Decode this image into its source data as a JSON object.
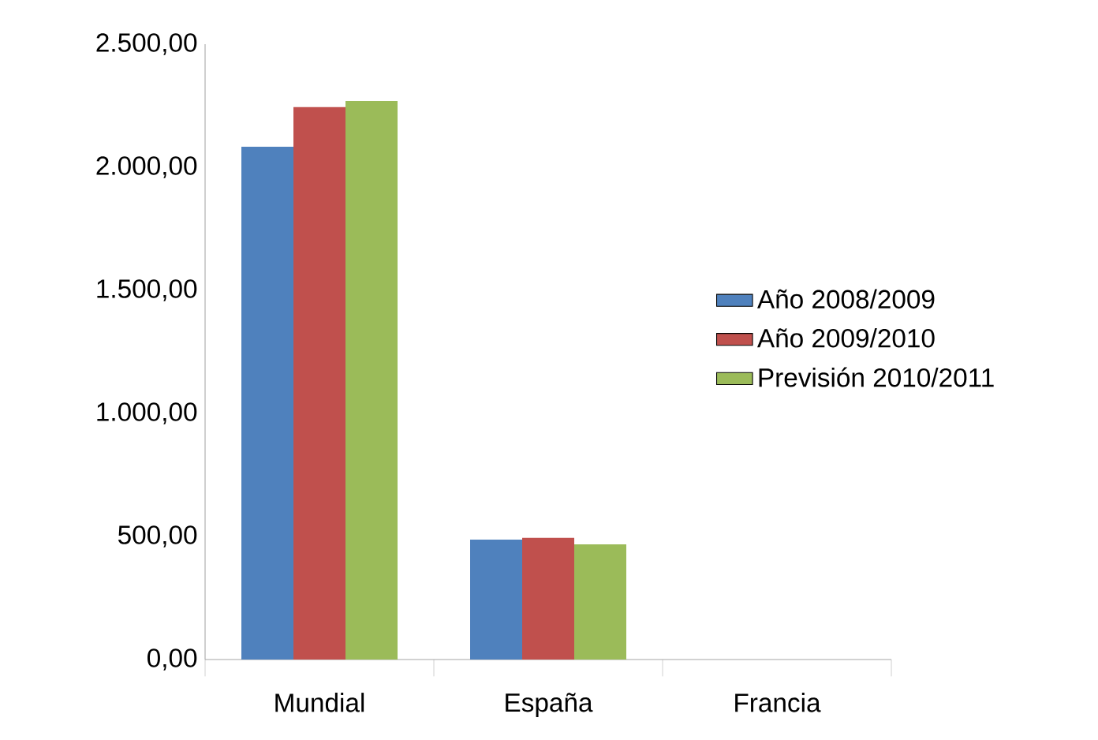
{
  "chart_data": {
    "type": "bar",
    "categories": [
      "Mundial",
      "España",
      "Francia"
    ],
    "series": [
      {
        "name": "Año 2008/2009",
        "color": "#4f81bd",
        "values": [
          2083,
          487,
          0
        ]
      },
      {
        "name": "Año 2009/2010",
        "color": "#c0504d",
        "values": [
          2244,
          494,
          0
        ]
      },
      {
        "name": "Previsión 2010/2011",
        "color": "#9bbb59",
        "values": [
          2269,
          468,
          0
        ]
      }
    ],
    "ylim": [
      0,
      2500
    ],
    "yticks": [
      {
        "value": 0,
        "label": "0,00"
      },
      {
        "value": 500,
        "label": "500,00"
      },
      {
        "value": 1000,
        "label": "1.000,00"
      },
      {
        "value": 1500,
        "label": "1.500,00"
      },
      {
        "value": 2000,
        "label": "2.000,00"
      },
      {
        "value": 2500,
        "label": "2.500,00"
      }
    ],
    "legend": "right",
    "grid": false
  }
}
